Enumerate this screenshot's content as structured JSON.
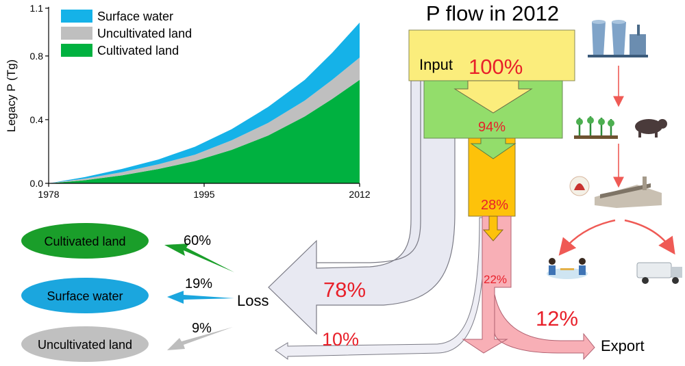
{
  "chart_data": {
    "type": "area",
    "title": "",
    "xlabel": "",
    "ylabel": "Legacy P (Tg)",
    "xlim": [
      1978,
      2012
    ],
    "ylim": [
      0,
      1.1
    ],
    "x_ticks": [
      "1978",
      "1995",
      "2012"
    ],
    "y_ticks": [
      "0.0",
      "0.4",
      "0.8",
      "1.1"
    ],
    "legend_position": "top-left",
    "stacked": true,
    "x": [
      1978,
      1982,
      1986,
      1990,
      1994,
      1998,
      2002,
      2006,
      2009,
      2012
    ],
    "series": [
      {
        "name": "Cultivated land",
        "color": "#00b140",
        "values": [
          0.0,
          0.02,
          0.05,
          0.09,
          0.14,
          0.21,
          0.3,
          0.42,
          0.53,
          0.65
        ]
      },
      {
        "name": "Uncultivated land",
        "color": "#bfbfbf",
        "values": [
          0.0,
          0.01,
          0.02,
          0.03,
          0.04,
          0.06,
          0.08,
          0.1,
          0.12,
          0.14
        ]
      },
      {
        "name": "Surface water",
        "color": "#15b2e8",
        "values": [
          0.0,
          0.01,
          0.02,
          0.03,
          0.05,
          0.07,
          0.1,
          0.13,
          0.17,
          0.22
        ]
      }
    ]
  },
  "flow": {
    "title": "P flow in 2012",
    "input_label": "Input",
    "input_pct": "100%",
    "stage2_pct": "94%",
    "stage3_pct": "28%",
    "stage4_pct": "22%",
    "loss_main_pct": "78%",
    "loss_minor_pct": "10%",
    "export_pct": "12%",
    "export_label": "Export",
    "loss_label": "Loss"
  },
  "sinks": [
    {
      "label": "Cultivated land",
      "pct": "60%",
      "color": "#1a9e2a"
    },
    {
      "label": "Surface water",
      "pct": "19%",
      "color": "#1ba6de"
    },
    {
      "label": "Uncultivated land",
      "pct": "9%",
      "color": "#c0c0c0"
    }
  ],
  "colors": {
    "input_box": "#fbed7c",
    "stage2_box": "#93dd6b",
    "stage3_box": "#fdc20a",
    "export_flow": "#f8afb6",
    "loss_flow": "#e8e9f2",
    "pct_red": "#e8202a"
  },
  "icons": [
    "power-plant-icon",
    "crops-icon",
    "pig-icon",
    "meat-icon",
    "factory-icon",
    "people-dining-icon",
    "truck-icon"
  ]
}
